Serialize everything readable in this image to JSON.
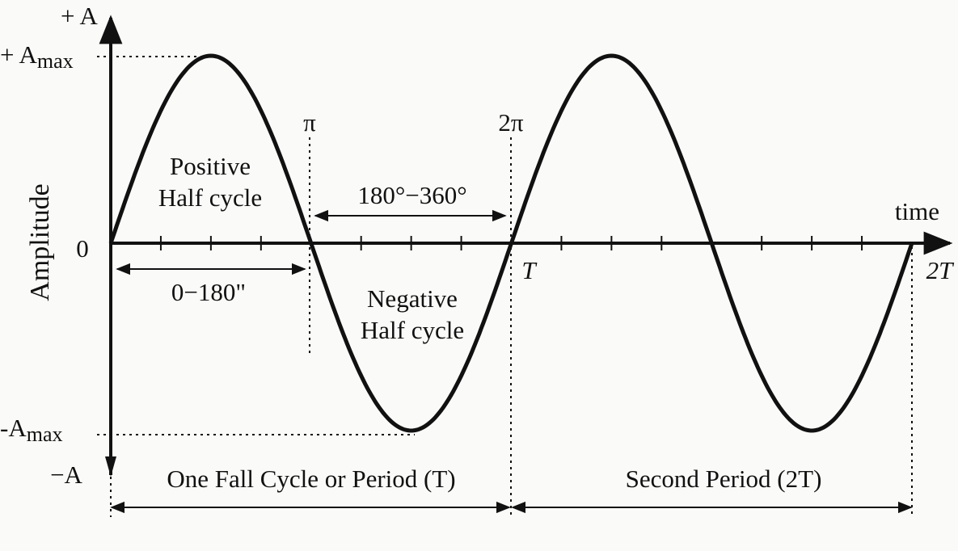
{
  "labels": {
    "y_axis_title": "Amplitude",
    "x_axis_title": "time",
    "top": "+ A",
    "bottom": "−A",
    "zero": "0",
    "a_max": {
      "main": "+ A",
      "sub": "max"
    },
    "a_min": {
      "main": "-A",
      "sub": "max"
    },
    "pi": "π",
    "two_pi": "2π",
    "t": "T",
    "two_t": "2T",
    "positive": [
      "Positive",
      "Half cycle"
    ],
    "negative": [
      "Negative",
      "Half cycle"
    ],
    "range_first": "0−180\"",
    "range_second": "180°−360°",
    "period_first": "One Fall Cycle or Period (T)",
    "period_second": "Second Period (2T)"
  }
}
